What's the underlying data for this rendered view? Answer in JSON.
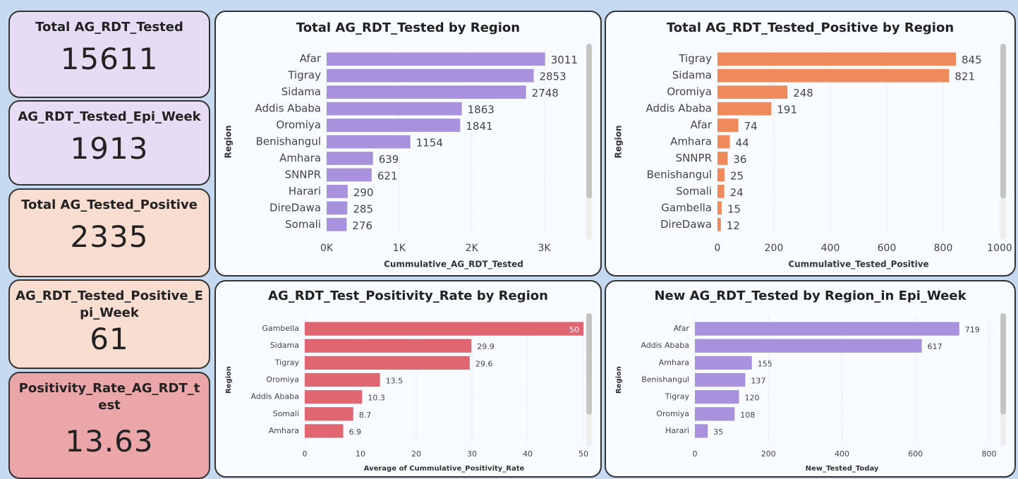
{
  "cards": [
    {
      "label": "Total AG_RDT_Tested",
      "value": 15611,
      "color": "#e6dcf3"
    },
    {
      "label": "AG_RDT_Tested_Epi_Week",
      "value": 1913,
      "color": "#e6dcf3"
    },
    {
      "label": "Total AG_Tested_Positive",
      "value": 2335,
      "color": "#f9ddd0"
    },
    {
      "label": "AG_RDT_Tested_Positive_Epi_Week",
      "value": 61,
      "color": "#f9ddd0"
    },
    {
      "label": "Positivity_Rate_AG_RDT_test",
      "value": 13.63,
      "color": "#eba6a9"
    }
  ],
  "chart_data": [
    {
      "type": "hbar",
      "title": "Total AG_RDT_Tested by Region",
      "y_label": "Region",
      "x_label": "Cummulative_AG_RDT_Tested",
      "categories": [
        "Afar",
        "Tigray",
        "Sidama",
        "Addis Ababa",
        "Oromiya",
        "Benishangul",
        "Amhara",
        "SNNPR",
        "Harari",
        "DireDawa",
        "Somali"
      ],
      "values": [
        3011,
        2853,
        2748,
        1863,
        1841,
        1154,
        639,
        621,
        290,
        285,
        276
      ],
      "color": "#a992dd",
      "xlim": [
        0,
        3500
      ],
      "xticks": [
        {
          "value": 0,
          "label": "0K"
        },
        {
          "value": 1000,
          "label": "1K"
        },
        {
          "value": 2000,
          "label": "2K"
        },
        {
          "value": 3000,
          "label": "3K"
        }
      ],
      "grid": true
    },
    {
      "type": "hbar",
      "title": "Total AG_RDT_Tested_Positive by Region",
      "y_label": "Region",
      "x_label": "Cummulative_Tested_Positive",
      "categories": [
        "Tigray",
        "Sidama",
        "Oromiya",
        "Addis Ababa",
        "Afar",
        "Amhara",
        "SNNPR",
        "Benishangul",
        "Somali",
        "Gambella",
        "DireDawa"
      ],
      "values": [
        845,
        821,
        248,
        191,
        74,
        44,
        36,
        25,
        24,
        15,
        12
      ],
      "color": "#ee8a5c",
      "xlim": [
        0,
        1000
      ],
      "xticks": [
        0,
        200,
        400,
        600,
        800,
        1000
      ],
      "grid": true
    },
    {
      "type": "hbar",
      "title": "AG_RDT_Test_Positivity_Rate by Region",
      "y_label": "Region",
      "x_label": "Average of Cummulative_Positivity_Rate",
      "categories": [
        "Gambella",
        "Sidama",
        "Tigray",
        "Oromiya",
        "Addis Ababa",
        "Somali",
        "Amhara"
      ],
      "values": [
        50,
        29.9,
        29.6,
        13.5,
        10.3,
        8.7,
        6.9
      ],
      "color": "#e06772",
      "xlim": [
        0,
        50
      ],
      "xticks": [
        0,
        10,
        20,
        30,
        40,
        50
      ],
      "grid": true
    },
    {
      "type": "hbar",
      "title": "New AG_RDT_Tested by Region_in Epi_Week",
      "y_label": "Region",
      "x_label": "New_Tested_Today",
      "categories": [
        "Afar",
        "Addis Ababa",
        "Amhara",
        "Benishangul",
        "Tigray",
        "Oromiya",
        "Harari"
      ],
      "values": [
        719,
        617,
        155,
        137,
        120,
        108,
        35
      ],
      "color": "#a992dd",
      "xlim": [
        0,
        800
      ],
      "xticks": [
        0,
        200,
        400,
        600,
        800
      ],
      "grid": true
    }
  ]
}
